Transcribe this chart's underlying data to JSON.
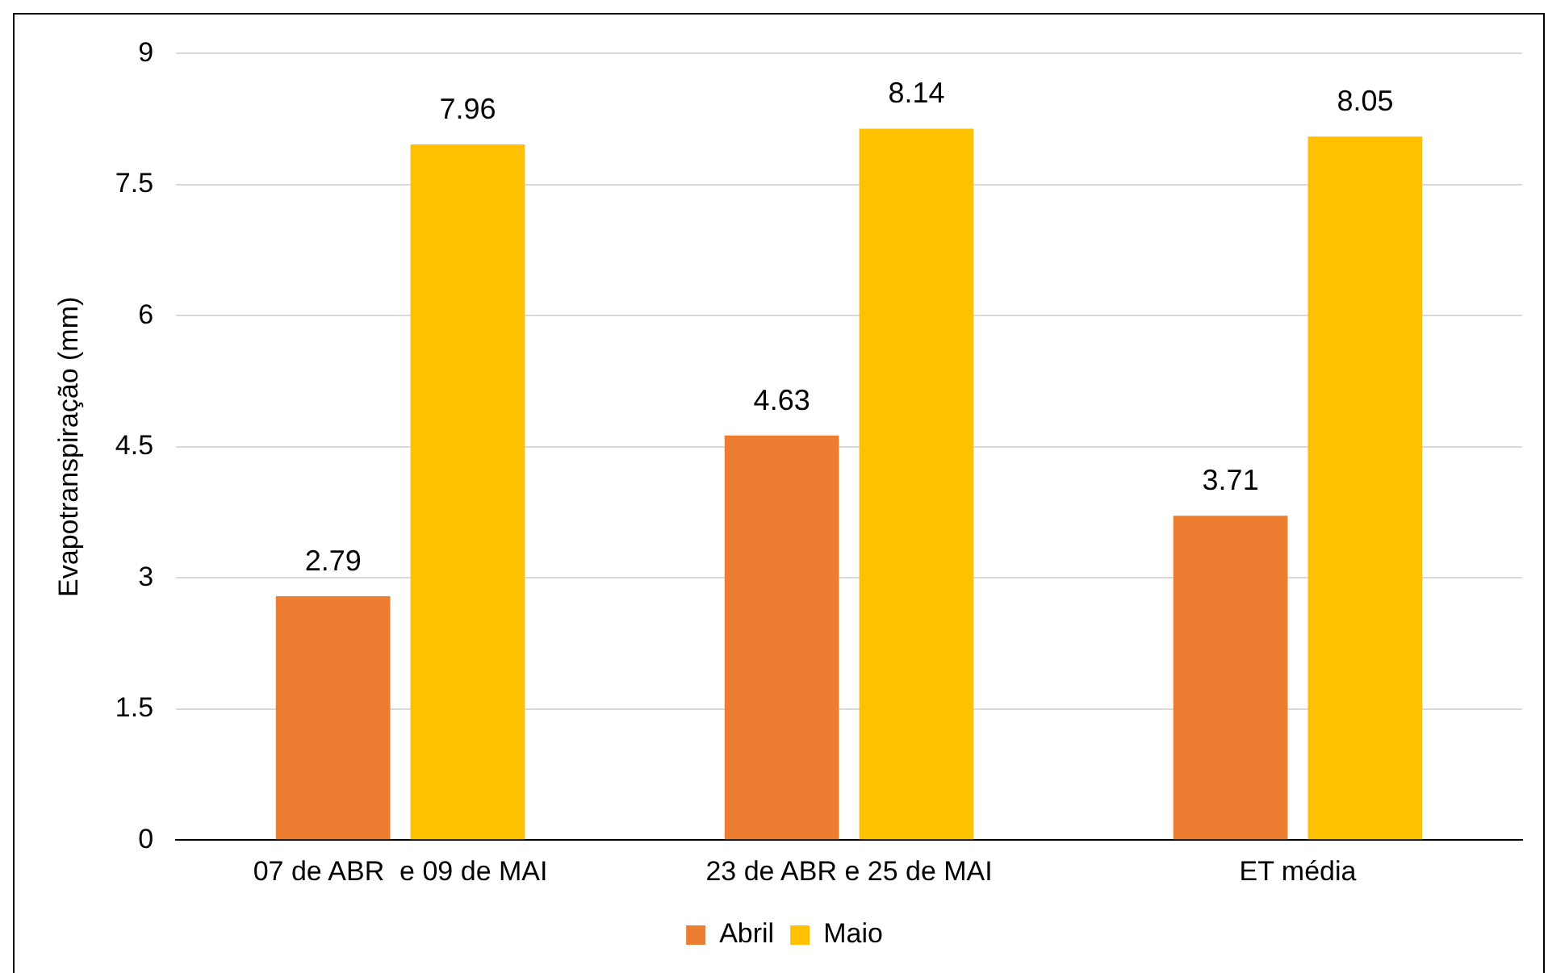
{
  "chart_data": {
    "type": "bar",
    "ylabel": "Evapotranspiração (mm)",
    "categories": [
      "07 de ABR  e 09 de MAI",
      "23 de ABR e 25 de MAI",
      "ET média"
    ],
    "series": [
      {
        "name": "Abril",
        "color": "#ed7d31",
        "values": [
          2.79,
          4.63,
          3.71
        ]
      },
      {
        "name": "Maio",
        "color": "#ffc000",
        "values": [
          7.96,
          8.14,
          8.05
        ]
      }
    ],
    "ylim": [
      0,
      9
    ],
    "yticks": [
      0,
      1.5,
      3,
      4.5,
      6,
      7.5,
      9
    ],
    "grid": "y",
    "legend": "bottom",
    "data_labels": true
  }
}
